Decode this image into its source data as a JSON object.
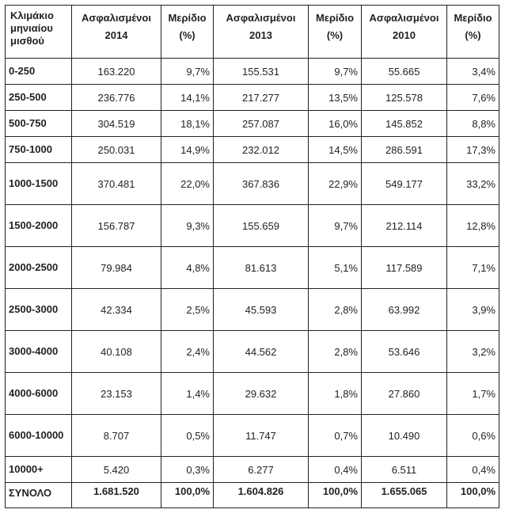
{
  "table": {
    "headers": [
      "Κλιμάκιο μηνιαίου μισθού",
      "Ασφαλισμένοι 2014",
      "Μερίδιο (%)",
      "Ασφαλισμένοι 2013",
      "Μερίδιο (%)",
      "Ασφαλισμένοι 2010",
      "Μερίδιο (%)"
    ],
    "rows": [
      {
        "bracket": "0-250",
        "c1": "163.220",
        "p1": "9,7%",
        "c2": "155.531",
        "p2": "9,7%",
        "c3": "55.665",
        "p3": "3,4%"
      },
      {
        "bracket": "250-500",
        "c1": "236.776",
        "p1": "14,1%",
        "c2": "217.277",
        "p2": "13,5%",
        "c3": "125.578",
        "p3": "7,6%"
      },
      {
        "bracket": "500-750",
        "c1": "304.519",
        "p1": "18,1%",
        "c2": "257.087",
        "p2": "16,0%",
        "c3": "145.852",
        "p3": "8,8%"
      },
      {
        "bracket": "750-1000",
        "c1": "250.031",
        "p1": "14,9%",
        "c2": "232.012",
        "p2": "14,5%",
        "c3": "286.591",
        "p3": "17,3%"
      },
      {
        "bracket": "1000-1500",
        "c1": "370.481",
        "p1": "22,0%",
        "c2": "367.836",
        "p2": "22,9%",
        "c3": "549.177",
        "p3": "33,2%"
      },
      {
        "bracket": "1500-2000",
        "c1": "156.787",
        "p1": "9,3%",
        "c2": "155.659",
        "p2": "9,7%",
        "c3": "212.114",
        "p3": "12,8%"
      },
      {
        "bracket": "2000-2500",
        "c1": "79.984",
        "p1": "4,8%",
        "c2": "81.613",
        "p2": "5,1%",
        "c3": "117.589",
        "p3": "7,1%"
      },
      {
        "bracket": "2500-3000",
        "c1": "42.334",
        "p1": "2,5%",
        "c2": "45.593",
        "p2": "2,8%",
        "c3": "63.992",
        "p3": "3,9%"
      },
      {
        "bracket": "3000-4000",
        "c1": "40.108",
        "p1": "2,4%",
        "c2": "44.562",
        "p2": "2,8%",
        "c3": "53.646",
        "p3": "3,2%"
      },
      {
        "bracket": "4000-6000",
        "c1": "23.153",
        "p1": "1,4%",
        "c2": "29.632",
        "p2": "1,8%",
        "c3": "27.860",
        "p3": "1,7%"
      },
      {
        "bracket": "6000-10000",
        "c1": "8.707",
        "p1": "0,5%",
        "c2": "11.747",
        "p2": "0,7%",
        "c3": "10.490",
        "p3": "0,6%"
      },
      {
        "bracket": "10000+",
        "c1": "5.420",
        "p1": "0,3%",
        "c2": "6.277",
        "p2": "0,4%",
        "c3": "6.511",
        "p3": "0,4%"
      }
    ],
    "total": {
      "bracket": "ΣΥΝΟΛΟ",
      "c1": "1.681.520",
      "p1": "100,0%",
      "c2": "1.604.826",
      "p2": "100,0%",
      "c3": "1.655.065",
      "p3": "100,0%"
    }
  }
}
